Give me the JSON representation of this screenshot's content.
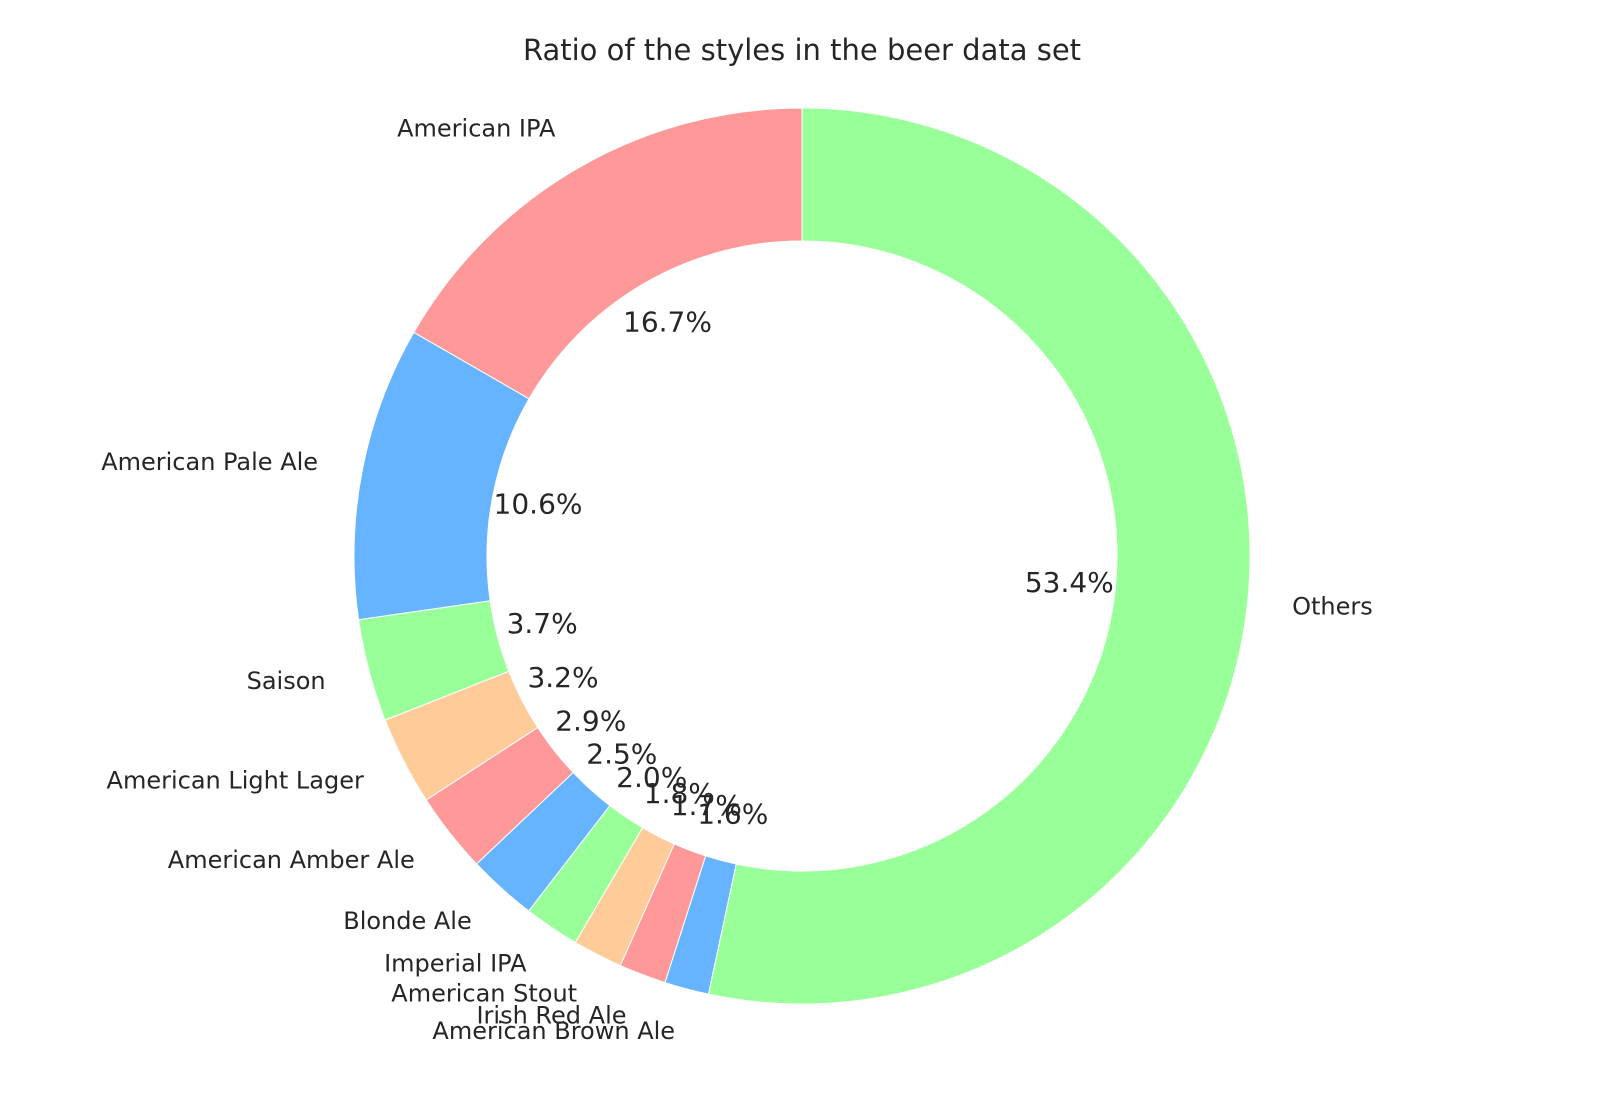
{
  "chart_data": {
    "type": "pie",
    "donut": true,
    "title": "Ratio of the styles in the beer data set",
    "start": "top",
    "direction": "counterclockwise",
    "slices": [
      {
        "label": "American IPA",
        "value": 16.7,
        "pct_label": "16.7%",
        "color": "#ff9999"
      },
      {
        "label": "American Pale Ale",
        "value": 10.6,
        "pct_label": "10.6%",
        "color": "#66b3ff"
      },
      {
        "label": "Saison",
        "value": 3.7,
        "pct_label": "3.7%",
        "color": "#99ff99"
      },
      {
        "label": "American Light Lager",
        "value": 3.2,
        "pct_label": "3.2%",
        "color": "#ffcc99"
      },
      {
        "label": "American Amber Ale",
        "value": 2.9,
        "pct_label": "2.9%",
        "color": "#ff9999"
      },
      {
        "label": "Blonde Ale",
        "value": 2.5,
        "pct_label": "2.5%",
        "color": "#66b3ff"
      },
      {
        "label": "Imperial IPA",
        "value": 2.0,
        "pct_label": "2.0%",
        "color": "#99ff99"
      },
      {
        "label": "American Stout",
        "value": 1.8,
        "pct_label": "1.8%",
        "color": "#ffcc99"
      },
      {
        "label": "Irish Red Ale",
        "value": 1.7,
        "pct_label": "1.7%",
        "color": "#ff9999"
      },
      {
        "label": "American Brown Ale",
        "value": 1.6,
        "pct_label": "1.6%",
        "color": "#66b3ff"
      },
      {
        "label": "Others",
        "value": 53.4,
        "pct_label": "53.4%",
        "color": "#99ff99"
      }
    ]
  }
}
